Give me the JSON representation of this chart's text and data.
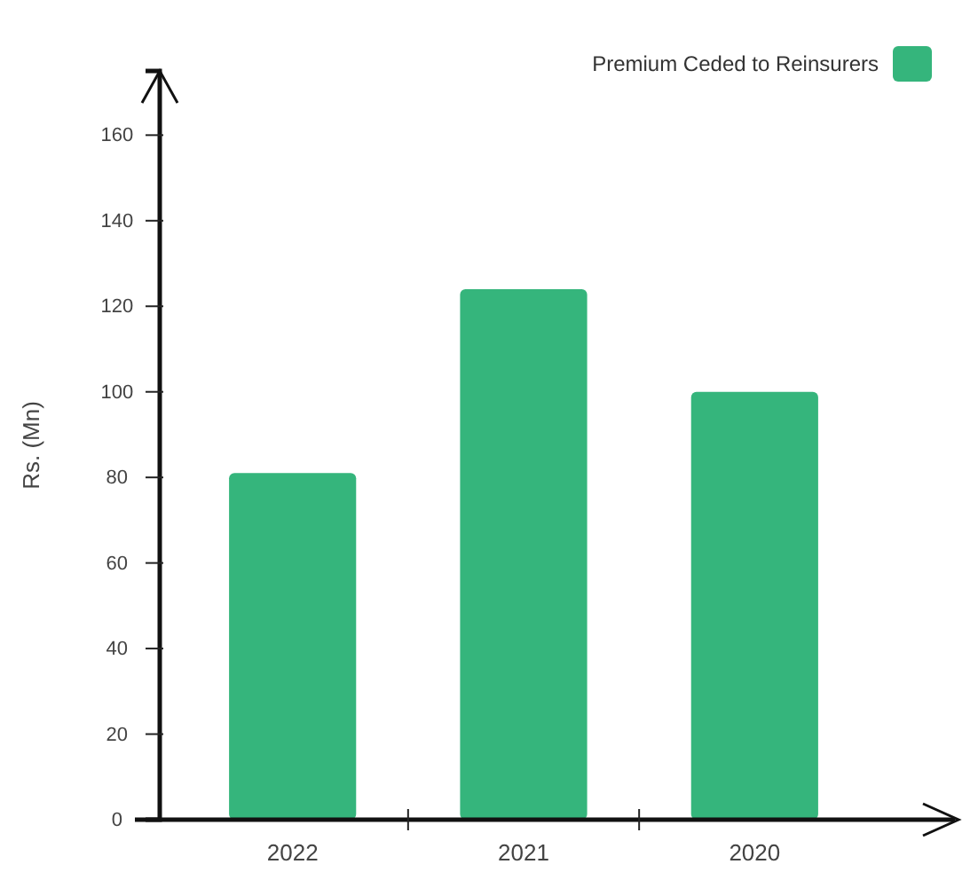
{
  "chart_data": {
    "type": "bar",
    "ylabel": "Rs. (Mn)",
    "categories": [
      "2022",
      "2021",
      "2020"
    ],
    "series": [
      {
        "name": "Premium Ceded to Reinsurers",
        "color": "#35b57c",
        "values": [
          81,
          124,
          100
        ]
      }
    ],
    "ylim": [
      0,
      175
    ],
    "yticks": [
      0,
      20,
      40,
      60,
      80,
      100,
      120,
      140,
      160
    ],
    "legend": "top right"
  }
}
